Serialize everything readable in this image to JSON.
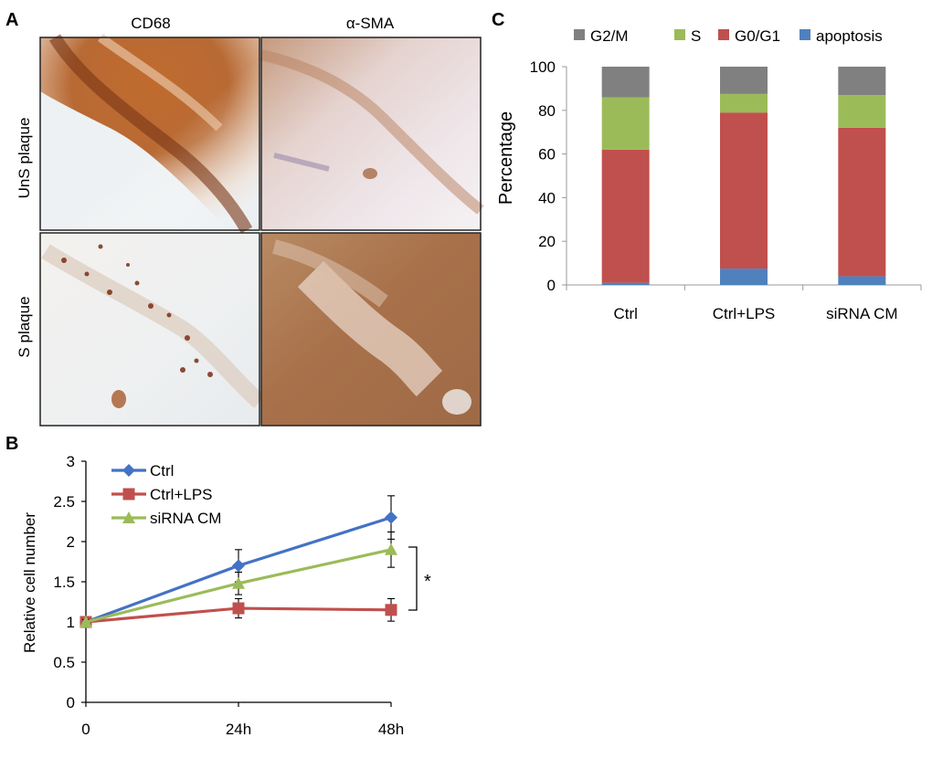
{
  "panel_a": {
    "letter": "A",
    "col_labels": [
      "CD68",
      "α-SMA"
    ],
    "row_labels": [
      "UnS plaque",
      "S plaque"
    ]
  },
  "panel_b": {
    "letter": "B",
    "significance": "*"
  },
  "panel_c": {
    "letter": "C"
  },
  "colors": {
    "ctrl": "#4472C4",
    "ctrl_lps": "#C0504D",
    "sirna": "#9BBB59",
    "g2m": "#808080",
    "s": "#9BBB59",
    "g0g1": "#C0504D",
    "apoptosis": "#4F81BD"
  },
  "chart_data": [
    {
      "id": "B",
      "type": "line",
      "x": [
        "0",
        "24h",
        "48h"
      ],
      "ylabel": "Relative cell number",
      "xlabel": "",
      "ylim": [
        0,
        3
      ],
      "yticks": [
        "0",
        "0.5",
        "1",
        "1.5",
        "2",
        "2.5",
        "3"
      ],
      "legend_position": "top-left",
      "series": [
        {
          "name": "Ctrl",
          "marker": "diamond",
          "values": [
            1.0,
            1.7,
            2.3
          ],
          "errors": [
            0.03,
            0.2,
            0.27
          ]
        },
        {
          "name": "Ctrl+LPS",
          "marker": "square",
          "values": [
            1.0,
            1.17,
            1.15
          ],
          "errors": [
            0.03,
            0.12,
            0.14
          ]
        },
        {
          "name": "siRNA CM",
          "marker": "triangle",
          "values": [
            1.0,
            1.48,
            1.9
          ],
          "errors": [
            0.03,
            0.14,
            0.22
          ]
        }
      ]
    },
    {
      "id": "C",
      "type": "bar",
      "stacked": true,
      "categories": [
        "Ctrl",
        "Ctrl+LPS",
        "siRNA CM"
      ],
      "ylabel": "Percentage",
      "xlabel": "",
      "ylim": [
        0,
        100
      ],
      "yticks": [
        "0",
        "20",
        "40",
        "60",
        "80",
        "100"
      ],
      "legend_position": "top",
      "series": [
        {
          "name": "apoptosis",
          "values": [
            1,
            7.5,
            4
          ]
        },
        {
          "name": "G0/G1",
          "values": [
            61,
            71.5,
            68
          ]
        },
        {
          "name": "S",
          "values": [
            24,
            8.5,
            15
          ]
        },
        {
          "name": "G2/M",
          "values": [
            14,
            12.5,
            13
          ]
        }
      ],
      "legend_order": [
        "G2/M",
        "S",
        "G0/G1",
        "apoptosis"
      ]
    }
  ]
}
